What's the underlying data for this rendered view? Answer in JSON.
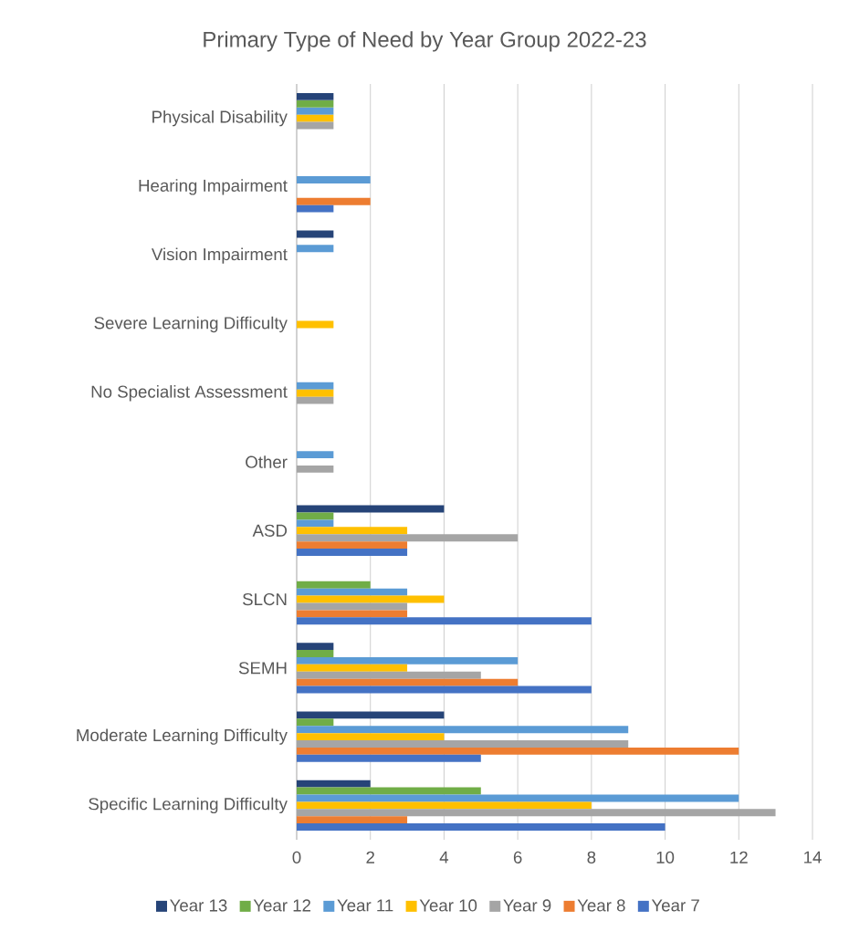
{
  "chart_data": {
    "type": "bar",
    "orientation": "horizontal",
    "title": "Primary Type of Need by Year Group 2022-23",
    "categories": [
      "Physical Disability",
      "Hearing Impairment",
      "Vision Impairment",
      "Severe Learning Difficulty",
      "No Specialist Assessment",
      "Other",
      "ASD",
      "SLCN",
      "SEMH",
      "Moderate Learning Difficulty",
      "Specific Learning Difficulty"
    ],
    "series": [
      {
        "name": "Year 13",
        "color": "#264478",
        "values": [
          1,
          null,
          1,
          null,
          null,
          null,
          4,
          null,
          1,
          4,
          2
        ]
      },
      {
        "name": "Year 12",
        "color": "#70ad47",
        "values": [
          1,
          null,
          null,
          null,
          null,
          null,
          1,
          2,
          1,
          1,
          5
        ]
      },
      {
        "name": "Year 11",
        "color": "#5b9bd5",
        "values": [
          1,
          2,
          1,
          null,
          1,
          1,
          1,
          3,
          6,
          9,
          12
        ]
      },
      {
        "name": "Year 10",
        "color": "#ffc000",
        "values": [
          1,
          null,
          null,
          1,
          1,
          null,
          3,
          4,
          3,
          4,
          8
        ]
      },
      {
        "name": "Year 9",
        "color": "#a5a5a5",
        "values": [
          1,
          null,
          null,
          null,
          1,
          1,
          6,
          3,
          5,
          9,
          13
        ]
      },
      {
        "name": "Year 8",
        "color": "#ed7d31",
        "values": [
          null,
          2,
          null,
          null,
          null,
          null,
          3,
          3,
          6,
          12,
          3
        ]
      },
      {
        "name": "Year 7",
        "color": "#4472c4",
        "values": [
          null,
          1,
          null,
          null,
          null,
          null,
          3,
          8,
          8,
          5,
          10
        ]
      }
    ],
    "xlim": [
      0,
      14
    ],
    "xticks": [
      0,
      2,
      4,
      6,
      8,
      10,
      12,
      14
    ],
    "grid": "x",
    "legend": "bottom"
  }
}
